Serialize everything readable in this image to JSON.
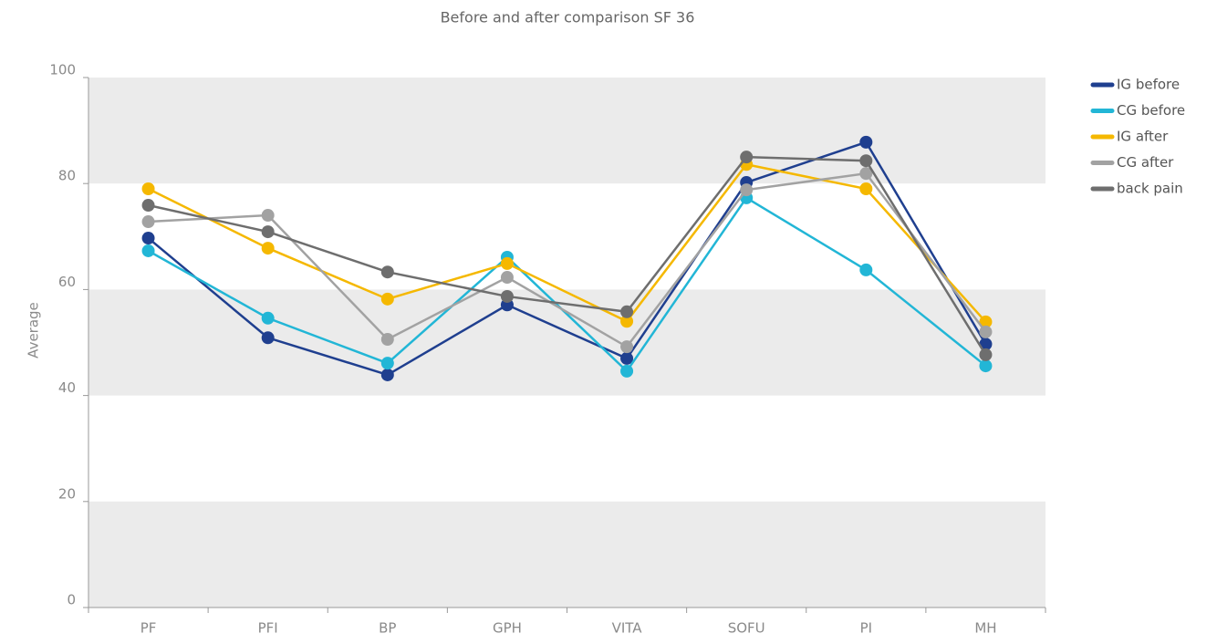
{
  "chart_data": {
    "type": "line",
    "title": "Before and after comparison SF 36",
    "y_label": "Average",
    "categories": [
      "PF",
      "PFI",
      "BP",
      "GPH",
      "VITA",
      "SOFU",
      "PI",
      "MH"
    ],
    "series": [
      {
        "name": "IG before",
        "color": "#1f3f8f",
        "values": [
          69.7,
          50.9,
          43.9,
          57.1,
          47.0,
          80.2,
          87.8,
          49.7
        ]
      },
      {
        "name": "CG before",
        "color": "#22b6d6",
        "values": [
          67.3,
          54.6,
          46.1,
          66.1,
          44.6,
          77.3,
          63.7,
          45.6
        ]
      },
      {
        "name": "IG after",
        "color": "#f5b800",
        "values": [
          79.0,
          67.8,
          58.2,
          64.9,
          54.0,
          83.6,
          79.0,
          53.9
        ]
      },
      {
        "name": "CG after",
        "color": "#a2a2a2",
        "values": [
          72.8,
          74.0,
          50.6,
          62.3,
          49.2,
          78.8,
          81.9,
          52.0
        ]
      },
      {
        "name": "back pain",
        "color": "#6e6e6e",
        "values": [
          75.9,
          70.9,
          63.3,
          58.7,
          55.8,
          85.0,
          84.3,
          47.7
        ]
      }
    ],
    "ylim": [
      0,
      100
    ],
    "yticks": [
      0,
      20,
      40,
      60,
      80,
      100
    ],
    "grid": "bands",
    "legend": "right"
  }
}
